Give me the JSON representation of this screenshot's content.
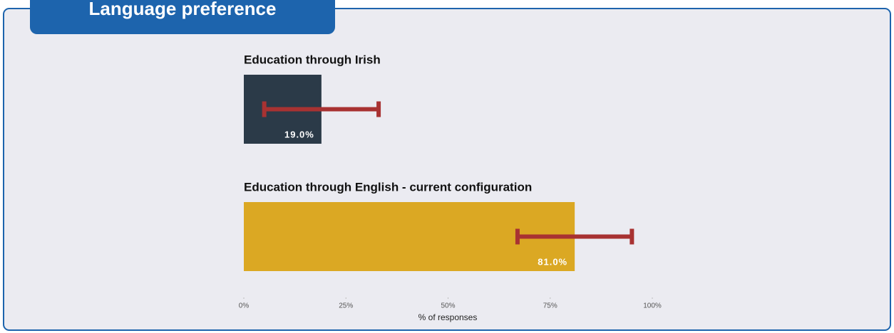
{
  "chart_data": {
    "type": "bar",
    "orientation": "horizontal",
    "title": "Language preference",
    "categories": [
      "Education through Irish",
      "Education through English - current configuration"
    ],
    "values": [
      19,
      81
    ],
    "errors": [
      14,
      14
    ],
    "value_labels": [
      "19.0%",
      "81.0%"
    ],
    "colors": [
      "#2b3a48",
      "#dba823"
    ],
    "error_color": "#a83232",
    "xlim": [
      0,
      100
    ],
    "xticks": [
      {
        "value": 0,
        "label": "0%"
      },
      {
        "value": 25,
        "label": "25%"
      },
      {
        "value": 50,
        "label": "50%"
      },
      {
        "value": 75,
        "label": "75%"
      },
      {
        "value": 100,
        "label": "100%"
      }
    ],
    "xlabel": "% of responses"
  }
}
